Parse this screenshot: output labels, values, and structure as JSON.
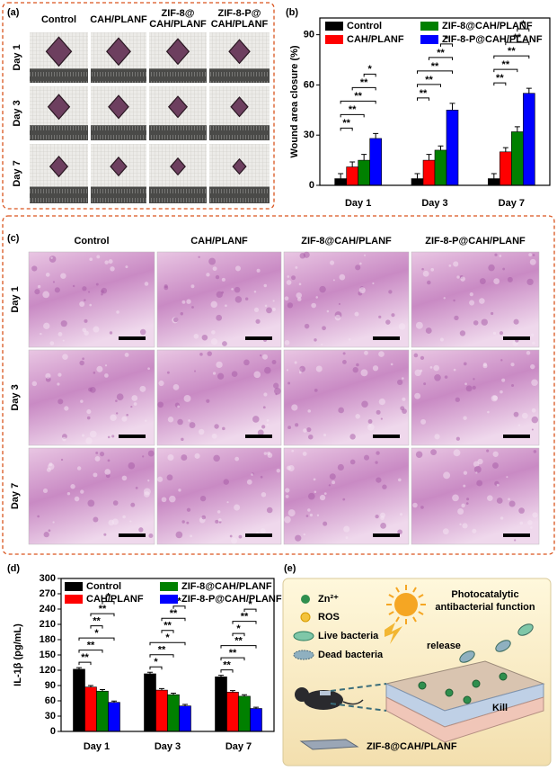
{
  "panel_a": {
    "letter": "(a)",
    "headers": [
      [
        "Control"
      ],
      [
        "CAH/PLANF"
      ],
      [
        "ZIF-8@",
        "CAH/PLANF"
      ],
      [
        "ZIF-8-P@",
        "CAH/PLANF"
      ]
    ],
    "rows": [
      "Day 1",
      "Day 3",
      "Day 7"
    ]
  },
  "panel_c": {
    "letter": "(c)",
    "headers": [
      "Control",
      "CAH/PLANF",
      "ZIF-8@CAH/PLANF",
      "ZIF-8-P@CAH/PLANF"
    ],
    "rows": [
      "Day 1",
      "Day 3",
      "Day 7"
    ]
  },
  "panel_e": {
    "letter": "(e)",
    "title_lines": [
      "Photocatalytic",
      "antibacterial function"
    ],
    "legend": [
      "Zn²⁺",
      "ROS",
      "Live bacteria",
      "Dead bacteria"
    ],
    "labels": [
      "release",
      "Kill"
    ],
    "material": "ZIF-8@CAH/PLANF"
  },
  "chart_data": [
    {
      "type": "bar",
      "letter": "(b)",
      "y_label": "Wound area closure (%)",
      "categories": [
        "Day 1",
        "Day 3",
        "Day 7"
      ],
      "series": [
        {
          "name": "Control",
          "color": "#000000",
          "values": [
            4,
            4,
            4
          ],
          "errors": [
            3,
            3,
            3
          ]
        },
        {
          "name": "CAH/PLANF",
          "color": "#ff0000",
          "values": [
            11,
            15,
            20
          ],
          "errors": [
            3,
            3.5,
            2.5
          ]
        },
        {
          "name": "ZIF-8@CAH/PLANF",
          "color": "#008000",
          "values": [
            15,
            21,
            32
          ],
          "errors": [
            3.5,
            2.5,
            3
          ]
        },
        {
          "name": "ZIF-8-P@CAH/PLANF",
          "color": "#0000ff",
          "values": [
            28,
            45,
            55
          ],
          "errors": [
            3,
            4,
            3
          ]
        }
      ],
      "significance": [
        [
          "**",
          "**",
          "**",
          "**",
          "*"
        ],
        [
          "**",
          "**",
          "**",
          "**",
          "*"
        ],
        [
          "**",
          "**",
          "**",
          "**",
          "*"
        ]
      ],
      "ylim": [
        0,
        100
      ],
      "yticks": [
        0,
        30,
        60,
        90
      ],
      "legend": "top"
    },
    {
      "type": "bar",
      "letter": "(d)",
      "y_label": "IL-1β (pg/mL)",
      "categories": [
        "Day 1",
        "Day 3",
        "Day 7"
      ],
      "series": [
        {
          "name": "Control",
          "color": "#000000",
          "values": [
            122,
            113,
            107
          ],
          "errors": [
            3,
            3,
            3
          ]
        },
        {
          "name": "CAH/PLANF",
          "color": "#ff0000",
          "values": [
            87,
            81,
            77
          ],
          "errors": [
            3,
            3,
            3
          ]
        },
        {
          "name": "ZIF-8@CAH/PLANF",
          "color": "#008000",
          "values": [
            79,
            72,
            69
          ],
          "errors": [
            3,
            3,
            3
          ]
        },
        {
          "name": "ZIF-8-P@CAH/PLANF",
          "color": "#0000ff",
          "values": [
            57,
            50,
            45
          ],
          "errors": [
            2.5,
            3,
            2.5
          ]
        }
      ],
      "significance": [
        [
          "**",
          "**",
          "*",
          "**",
          "**",
          "*"
        ],
        [
          "*",
          "**",
          "*",
          "**",
          "**",
          "*"
        ],
        [
          "**",
          "**",
          "**",
          "*",
          "**",
          "*"
        ]
      ],
      "ylim": [
        0,
        300
      ],
      "yticks": [
        0,
        30,
        60,
        90,
        120,
        150,
        180,
        210,
        240,
        270,
        300
      ],
      "legend": "top"
    }
  ]
}
